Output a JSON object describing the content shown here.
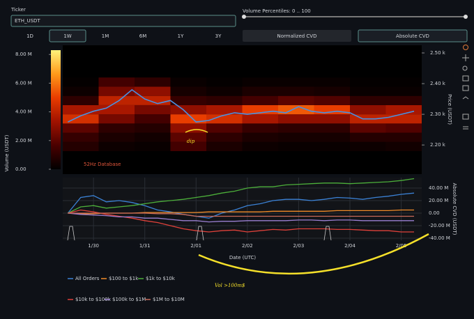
{
  "controls": {
    "ticker_label": "Ticker",
    "ticker_value": "ETH_USDT",
    "percentiles_label": "Volume Percentiles: 0 .. 100",
    "ranges": [
      {
        "label": "1D",
        "active": false
      },
      {
        "label": "1W",
        "active": true
      },
      {
        "label": "1M",
        "active": false
      },
      {
        "label": "6M",
        "active": false
      },
      {
        "label": "1Y",
        "active": false
      },
      {
        "label": "3Y",
        "active": false
      }
    ],
    "cvd_modes": [
      {
        "label": "Normalized CVD",
        "active": false
      },
      {
        "label": "Absolute CVD",
        "active": true
      }
    ]
  },
  "chart_data": [
    {
      "type": "heatmap",
      "ylabel": "Price (USDT)",
      "watermark": "52Hz Database",
      "annotation": "dip",
      "xlim": [
        29.4,
        36.4
      ],
      "ylim": [
        2105,
        2525
      ],
      "yticks": [
        {
          "value": 2200,
          "label": "2.20 k"
        },
        {
          "value": 2300,
          "label": "2.30 k"
        },
        {
          "value": 2400,
          "label": "2.40 k"
        },
        {
          "value": 2500,
          "label": "2.50 k"
        }
      ],
      "x_edges": [
        29.4,
        30.1,
        30.8,
        31.5,
        32.2,
        32.9,
        33.6,
        34.3,
        35.0,
        35.7,
        36.4
      ],
      "y_edges": [
        2180,
        2210,
        2240,
        2270,
        2300,
        2330,
        2360,
        2390,
        2420
      ],
      "z": [
        [
          800000,
          300000,
          200000,
          1500000,
          600000,
          300000,
          200000,
          200000,
          300000,
          400000
        ],
        [
          1200000,
          600000,
          400000,
          2000000,
          1000000,
          600000,
          500000,
          500000,
          800000,
          800000
        ],
        [
          2000000,
          1000000,
          800000,
          3000000,
          1800000,
          1200000,
          1000000,
          1000000,
          2000000,
          1800000
        ],
        [
          4500000,
          2500000,
          1500000,
          5000000,
          4500000,
          3500000,
          3000000,
          3000000,
          4000000,
          4000000
        ],
        [
          3500000,
          3500000,
          2500000,
          3000000,
          3500000,
          5000000,
          5500000,
          5000000,
          3000000,
          3500000
        ],
        [
          1000000,
          4000000,
          4000000,
          1200000,
          1000000,
          1500000,
          2000000,
          1800000,
          1000000,
          1000000
        ],
        [
          300000,
          2500000,
          3000000,
          500000,
          300000,
          600000,
          600000,
          500000,
          200000,
          200000
        ],
        [
          100000,
          1500000,
          1000000,
          200000,
          100000,
          200000,
          200000,
          200000,
          100000,
          100000
        ]
      ],
      "colorscale": [
        "#000000",
        "#4a0000",
        "#a01200",
        "#e83c00",
        "#ff9a1a",
        "#fff27a"
      ],
      "colorbar": {
        "label": "Volume (USDT)",
        "lim": [
          0,
          8300000
        ],
        "ticks": [
          {
            "value": 0,
            "label": "0.00"
          },
          {
            "value": 2000000,
            "label": "2.00 M"
          },
          {
            "value": 4000000,
            "label": "4.00 M"
          },
          {
            "value": 6000000,
            "label": "6.00 M"
          },
          {
            "value": 8000000,
            "label": "8.00 M"
          }
        ]
      },
      "line": {
        "color": "#4a90e2",
        "x": [
          29.5,
          29.75,
          30,
          30.25,
          30.5,
          30.75,
          31,
          31.25,
          31.5,
          31.75,
          32,
          32.25,
          32.5,
          32.75,
          33,
          33.25,
          33.5,
          33.75,
          34,
          34.25,
          34.5,
          34.75,
          35,
          35.25,
          35.5,
          35.75,
          36,
          36.25
        ],
        "values": [
          2275,
          2295,
          2310,
          2320,
          2345,
          2380,
          2350,
          2335,
          2345,
          2315,
          2275,
          2280,
          2295,
          2305,
          2300,
          2305,
          2310,
          2305,
          2325,
          2310,
          2305,
          2310,
          2305,
          2285,
          2285,
          2290,
          2300,
          2310
        ]
      }
    },
    {
      "type": "line",
      "xlabel": "Date (UTC)",
      "ylabel": "Absolute CVD (USDT)",
      "annotation": "Vol >100m$",
      "grid": true,
      "legend": "bottom",
      "xlim": [
        29.4,
        36.4
      ],
      "xticks": [
        {
          "value": 30,
          "label": "1/30"
        },
        {
          "value": 31,
          "label": "1/31"
        },
        {
          "value": 32,
          "label": "2/01"
        },
        {
          "value": 33,
          "label": "2/02"
        },
        {
          "value": 34,
          "label": "2/03"
        },
        {
          "value": 35,
          "label": "2/04"
        },
        {
          "value": 36,
          "label": "2/05"
        }
      ],
      "ylim": [
        -43300000,
        56700000
      ],
      "yticks": [
        {
          "value": -40000000,
          "label": "-40.00 M"
        },
        {
          "value": -20000000,
          "label": "-20.00 M"
        },
        {
          "value": 0,
          "label": "0.00"
        },
        {
          "value": 20000000,
          "label": "20.00 M"
        },
        {
          "value": 40000000,
          "label": "40.00 M"
        }
      ],
      "x": [
        29.5,
        29.75,
        30,
        30.25,
        30.5,
        30.75,
        31,
        31.25,
        31.5,
        31.75,
        32,
        32.25,
        32.5,
        32.75,
        33,
        33.25,
        33.5,
        33.75,
        34,
        34.25,
        34.5,
        34.75,
        35,
        35.25,
        35.5,
        35.75,
        36,
        36.25
      ],
      "series": [
        {
          "name": "All Orders",
          "color": "#3b82d6",
          "values": [
            0,
            25000000,
            28000000,
            18000000,
            20000000,
            17000000,
            12000000,
            5000000,
            2000000,
            -2000000,
            -5000000,
            -8000000,
            0,
            5000000,
            12000000,
            15000000,
            20000000,
            22000000,
            22000000,
            20000000,
            22000000,
            25000000,
            24000000,
            22000000,
            25000000,
            27000000,
            30000000,
            32000000
          ]
        },
        {
          "name": "$100 to $1k",
          "color": "#f28c28",
          "values": [
            0,
            -1000000,
            -1000000,
            0,
            0,
            0,
            1000000,
            1000000,
            1000000,
            1000000,
            1000000,
            2000000,
            2000000,
            2000000,
            2000000,
            2000000,
            3000000,
            3000000,
            3000000,
            3000000,
            3000000,
            4000000,
            4000000,
            4000000,
            4000000,
            4000000,
            5000000,
            5000000
          ]
        },
        {
          "name": "$1k to $10k",
          "color": "#4caf3a",
          "values": [
            0,
            10000000,
            12000000,
            8000000,
            10000000,
            12000000,
            15000000,
            18000000,
            20000000,
            22000000,
            25000000,
            28000000,
            32000000,
            35000000,
            40000000,
            42000000,
            42000000,
            45000000,
            46000000,
            47000000,
            48000000,
            48000000,
            47000000,
            48000000,
            49000000,
            50000000,
            52000000,
            55000000
          ]
        },
        {
          "name": "$10k to $100k",
          "color": "#e0413a",
          "values": [
            0,
            5000000,
            2000000,
            -2000000,
            -5000000,
            -8000000,
            -12000000,
            -15000000,
            -20000000,
            -25000000,
            -28000000,
            -30000000,
            -28000000,
            -27000000,
            -30000000,
            -28000000,
            -26000000,
            -27000000,
            -25000000,
            -25000000,
            -25000000,
            -26000000,
            -26000000,
            -27000000,
            -28000000,
            -28000000,
            -30000000,
            -30000000
          ]
        },
        {
          "name": "$100k to $1M",
          "color": "#9a7fd1",
          "values": [
            0,
            -2000000,
            -3000000,
            -4000000,
            -6000000,
            -6000000,
            -8000000,
            -8000000,
            -10000000,
            -12000000,
            -12000000,
            -14000000,
            -13000000,
            -13000000,
            -12000000,
            -12000000,
            -12000000,
            -12000000,
            -11000000,
            -11000000,
            -12000000,
            -11000000,
            -11000000,
            -12000000,
            -12000000,
            -12000000,
            -12000000,
            -12000000
          ]
        },
        {
          "name": "$1M to $10M",
          "color": "#c96a5a",
          "values": [
            0,
            0,
            0,
            0,
            0,
            0,
            0,
            -1000000,
            -1000000,
            -2000000,
            -5000000,
            -5000000,
            -5000000,
            -5000000,
            -5000000,
            -5000000,
            -5000000,
            -5000000,
            -5000000,
            -5000000,
            -5000000,
            -5000000,
            -5000000,
            -5000000,
            -5000000,
            -5000000,
            -5000000,
            -5000000
          ]
        }
      ]
    }
  ]
}
